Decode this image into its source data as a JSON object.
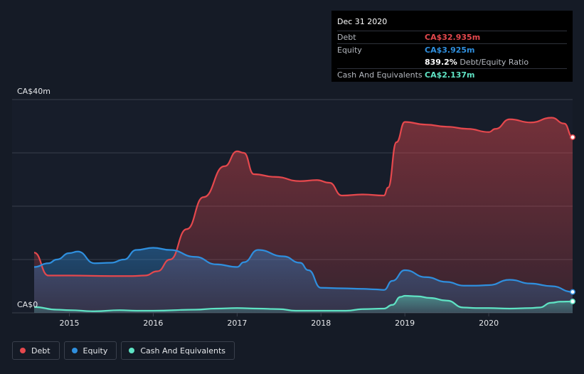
{
  "tooltip": {
    "date": "Dec 31 2020",
    "rows": [
      {
        "label": "Debt",
        "value": "CA$32.935m"
      },
      {
        "label": "Equity",
        "value": "CA$3.925m"
      },
      {
        "label": "Cash And Equivalents",
        "value": "CA$2.137m"
      }
    ],
    "ratio_value": "839.2%",
    "ratio_label": "Debt/Equity Ratio"
  },
  "colors": {
    "debt": "#e5484d",
    "equity": "#2f8fde",
    "cash": "#5fe3c4",
    "background": "#151b26",
    "grid": "#3a404c"
  },
  "legend": [
    {
      "label": "Debt"
    },
    {
      "label": "Equity"
    },
    {
      "label": "Cash And Equivalents"
    }
  ],
  "chart_data": {
    "type": "area",
    "y_tick_labels": [
      "CA$0",
      "CA$40m"
    ],
    "ylim": [
      0,
      40
    ],
    "xlim": [
      2014.58,
      2021.0
    ],
    "x_ticks": [
      2015,
      2016,
      2017,
      2018,
      2019,
      2020
    ],
    "x_tick_labels": [
      "2015",
      "2016",
      "2017",
      "2018",
      "2019",
      "2020"
    ],
    "grid": true,
    "legend_position": "bottom-left",
    "series": [
      {
        "name": "Debt",
        "points": [
          [
            2014.58,
            11.3
          ],
          [
            2014.75,
            7.0
          ],
          [
            2015.0,
            7.0
          ],
          [
            2015.5,
            6.9
          ],
          [
            2015.75,
            6.9
          ],
          [
            2015.9,
            7.0
          ],
          [
            2016.05,
            7.8
          ],
          [
            2016.2,
            10.0
          ],
          [
            2016.4,
            15.7
          ],
          [
            2016.6,
            21.7
          ],
          [
            2016.85,
            27.5
          ],
          [
            2017.0,
            30.3
          ],
          [
            2017.08,
            30.0
          ],
          [
            2017.2,
            26.0
          ],
          [
            2017.45,
            25.5
          ],
          [
            2017.75,
            24.7
          ],
          [
            2017.95,
            24.9
          ],
          [
            2018.1,
            24.4
          ],
          [
            2018.25,
            22.0
          ],
          [
            2018.5,
            22.2
          ],
          [
            2018.75,
            22.0
          ],
          [
            2018.8,
            23.5
          ],
          [
            2018.9,
            32.0
          ],
          [
            2019.0,
            35.8
          ],
          [
            2019.25,
            35.3
          ],
          [
            2019.5,
            34.9
          ],
          [
            2019.75,
            34.5
          ],
          [
            2020.0,
            33.9
          ],
          [
            2020.08,
            34.5
          ],
          [
            2020.25,
            36.3
          ],
          [
            2020.5,
            35.7
          ],
          [
            2020.75,
            36.6
          ],
          [
            2020.9,
            35.5
          ],
          [
            2021.0,
            32.935
          ]
        ]
      },
      {
        "name": "Equity",
        "points": [
          [
            2014.58,
            8.6
          ],
          [
            2014.75,
            9.3
          ],
          [
            2014.85,
            10.0
          ],
          [
            2015.0,
            11.2
          ],
          [
            2015.1,
            11.5
          ],
          [
            2015.3,
            9.3
          ],
          [
            2015.5,
            9.4
          ],
          [
            2015.65,
            10.0
          ],
          [
            2015.8,
            11.8
          ],
          [
            2016.0,
            12.2
          ],
          [
            2016.2,
            11.8
          ],
          [
            2016.5,
            10.5
          ],
          [
            2016.75,
            9.1
          ],
          [
            2017.0,
            8.6
          ],
          [
            2017.08,
            9.5
          ],
          [
            2017.25,
            11.8
          ],
          [
            2017.55,
            10.6
          ],
          [
            2017.75,
            9.4
          ],
          [
            2017.85,
            8.0
          ],
          [
            2018.0,
            4.7
          ],
          [
            2018.25,
            4.6
          ],
          [
            2018.5,
            4.5
          ],
          [
            2018.65,
            4.4
          ],
          [
            2018.75,
            4.3
          ],
          [
            2018.85,
            6.0
          ],
          [
            2019.0,
            8.0
          ],
          [
            2019.25,
            6.7
          ],
          [
            2019.5,
            5.8
          ],
          [
            2019.7,
            5.1
          ],
          [
            2019.85,
            5.1
          ],
          [
            2020.0,
            5.2
          ],
          [
            2020.25,
            6.2
          ],
          [
            2020.5,
            5.5
          ],
          [
            2020.75,
            5.0
          ],
          [
            2021.0,
            3.925
          ]
        ]
      },
      {
        "name": "Cash And Equivalents",
        "points": [
          [
            2014.58,
            1.1
          ],
          [
            2014.85,
            0.6
          ],
          [
            2015.0,
            0.5
          ],
          [
            2015.3,
            0.3
          ],
          [
            2015.6,
            0.5
          ],
          [
            2015.8,
            0.4
          ],
          [
            2016.0,
            0.4
          ],
          [
            2016.5,
            0.6
          ],
          [
            2016.75,
            0.8
          ],
          [
            2017.0,
            0.9
          ],
          [
            2017.25,
            0.8
          ],
          [
            2017.5,
            0.7
          ],
          [
            2017.7,
            0.4
          ],
          [
            2018.0,
            0.4
          ],
          [
            2018.3,
            0.4
          ],
          [
            2018.5,
            0.7
          ],
          [
            2018.75,
            0.8
          ],
          [
            2018.85,
            1.5
          ],
          [
            2018.95,
            3.0
          ],
          [
            2019.0,
            3.2
          ],
          [
            2019.15,
            3.1
          ],
          [
            2019.3,
            2.8
          ],
          [
            2019.5,
            2.3
          ],
          [
            2019.7,
            1.0
          ],
          [
            2019.85,
            0.9
          ],
          [
            2020.0,
            0.9
          ],
          [
            2020.25,
            0.8
          ],
          [
            2020.5,
            0.9
          ],
          [
            2020.6,
            1.0
          ],
          [
            2020.75,
            1.9
          ],
          [
            2020.85,
            2.1
          ],
          [
            2021.0,
            2.137
          ]
        ]
      }
    ]
  }
}
